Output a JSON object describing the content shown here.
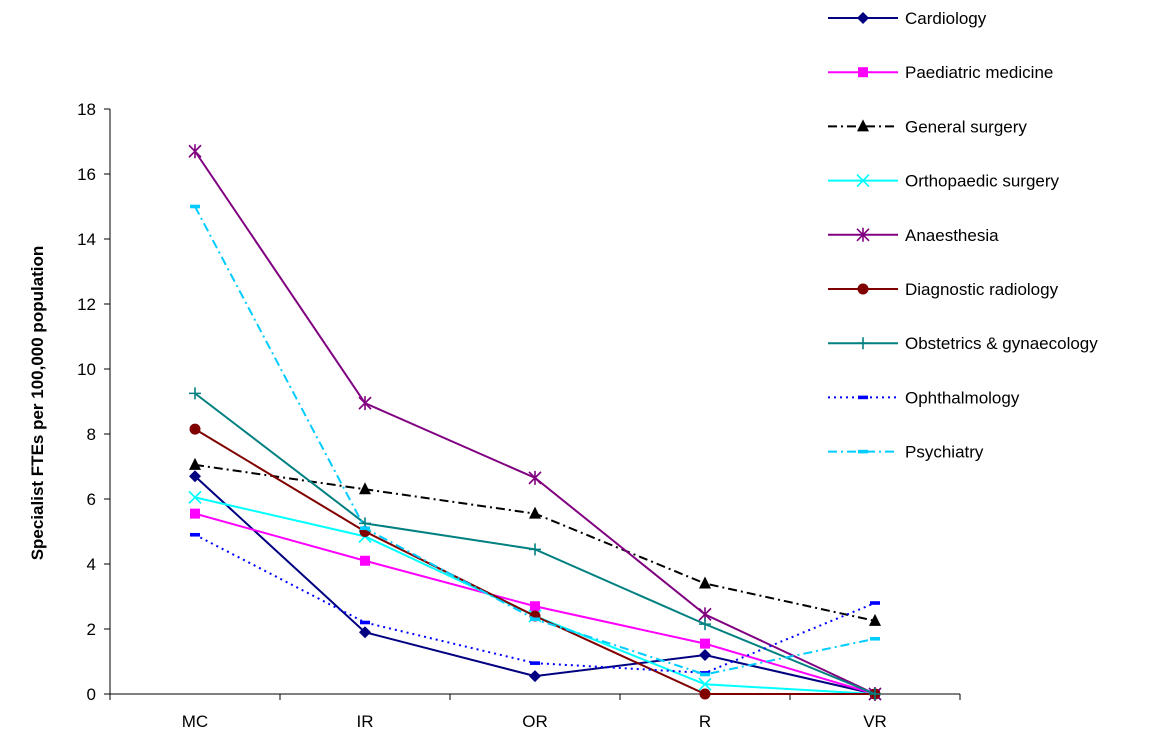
{
  "chart_data": {
    "type": "line",
    "title": "",
    "xlabel": "",
    "ylabel": "Specialist FTEs per 100,000 population",
    "categories": [
      "MC",
      "IR",
      "OR",
      "R",
      "VR"
    ],
    "ylim": [
      0,
      18
    ],
    "yticks": [
      0,
      2,
      4,
      6,
      8,
      10,
      12,
      14,
      16,
      18
    ],
    "grid": false,
    "legend_position": "top-right",
    "series": [
      {
        "name": "Cardiology",
        "values": [
          6.7,
          1.9,
          0.55,
          1.2,
          0.0
        ],
        "color": "#000080",
        "dash": "solid",
        "marker": "diamond"
      },
      {
        "name": "Paediatric medicine",
        "values": [
          5.55,
          4.1,
          2.7,
          1.55,
          0.0
        ],
        "color": "#ff00ff",
        "dash": "solid",
        "marker": "square"
      },
      {
        "name": "General surgery",
        "values": [
          7.05,
          6.3,
          5.55,
          3.4,
          2.25
        ],
        "color": "#000000",
        "dash": "dashdot",
        "marker": "triangle"
      },
      {
        "name": "Orthopaedic surgery",
        "values": [
          6.05,
          4.85,
          2.4,
          0.3,
          0.0
        ],
        "color": "#00ffff",
        "dash": "solid",
        "marker": "x"
      },
      {
        "name": "Anaesthesia",
        "values": [
          16.7,
          8.95,
          6.65,
          2.45,
          0.0
        ],
        "color": "#800080",
        "dash": "solid",
        "marker": "star"
      },
      {
        "name": "Diagnostic radiology",
        "values": [
          8.15,
          5.0,
          2.4,
          0.0,
          0.0
        ],
        "color": "#800000",
        "dash": "solid",
        "marker": "circle"
      },
      {
        "name": "Obstetrics & gynaecology",
        "values": [
          9.25,
          5.25,
          4.45,
          2.15,
          0.0
        ],
        "color": "#008080",
        "dash": "solid",
        "marker": "plus"
      },
      {
        "name": "Ophthalmology",
        "values": [
          4.9,
          2.2,
          0.95,
          0.65,
          2.8
        ],
        "color": "#0000ff",
        "dash": "dotted",
        "marker": "dash"
      },
      {
        "name": "Psychiatry",
        "values": [
          15.0,
          5.1,
          2.3,
          0.6,
          1.7
        ],
        "color": "#00ccff",
        "dash": "dashdot",
        "marker": "dash"
      }
    ]
  }
}
